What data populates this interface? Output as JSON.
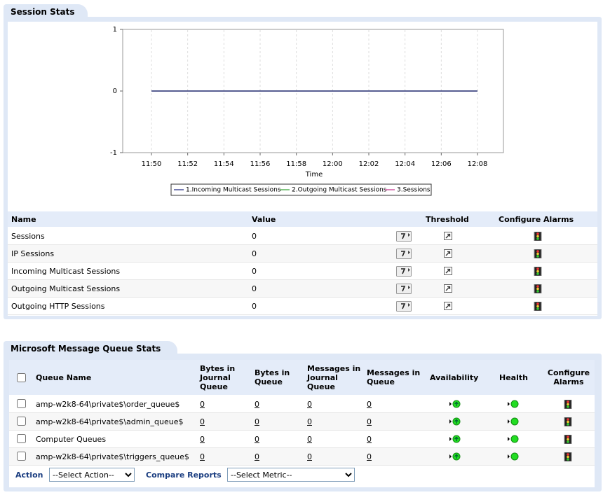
{
  "session_stats": {
    "title": "Session Stats",
    "columns": [
      "Name",
      "Value",
      "Threshold",
      "Configure Alarms"
    ],
    "rows": [
      [
        "Sessions",
        0
      ],
      [
        "IP Sessions",
        0
      ],
      [
        "Incoming Multicast Sessions",
        0
      ],
      [
        "Outgoing Multicast Sessions",
        0
      ],
      [
        "Outgoing HTTP Sessions",
        0
      ]
    ]
  },
  "chart_data": {
    "type": "line",
    "x_label": "Time",
    "categories": [
      "11:50",
      "11:52",
      "11:54",
      "11:56",
      "11:58",
      "12:00",
      "12:02",
      "12:04",
      "12:06",
      "12:08"
    ],
    "series": [
      {
        "name": "1.Incoming Multicast Sessions",
        "color": "#1a237e",
        "values": [
          0,
          0,
          0,
          0,
          0,
          0,
          0,
          0,
          0,
          0
        ]
      },
      {
        "name": "2.Outgoing Multicast Sessions",
        "color": "#2e9e2e",
        "values": [
          0,
          0,
          0,
          0,
          0,
          0,
          0,
          0,
          0,
          0
        ]
      },
      {
        "name": "3.Sessions",
        "color": "#c0308a",
        "values": [
          0,
          0,
          0,
          0,
          0,
          0,
          0,
          0,
          0,
          0
        ]
      }
    ],
    "ylim": [
      -1,
      1
    ],
    "yticks": [
      -1,
      0,
      1
    ],
    "grid": true
  },
  "queue_stats": {
    "title": "Microsoft Message Queue Stats",
    "columns": [
      "Queue Name",
      "Bytes in Journal Queue",
      "Bytes in Queue",
      "Messages in Journal Queue",
      "Messages in Queue",
      "Availability",
      "Health",
      "Configure Alarms"
    ],
    "rows": [
      [
        "amp-w2k8-64\\private$\\order_queue$",
        0,
        0,
        0,
        0
      ],
      [
        "amp-w2k8-64\\private$\\admin_queue$",
        0,
        0,
        0,
        0
      ],
      [
        "Computer Queues",
        0,
        0,
        0,
        0
      ],
      [
        "amp-w2k8-64\\private$\\triggers_queue$",
        0,
        0,
        0,
        0
      ]
    ],
    "action_label": "Action",
    "action_select": "--Select Action--",
    "compare_label": "Compare Reports",
    "compare_select": "--Select Metric--"
  }
}
